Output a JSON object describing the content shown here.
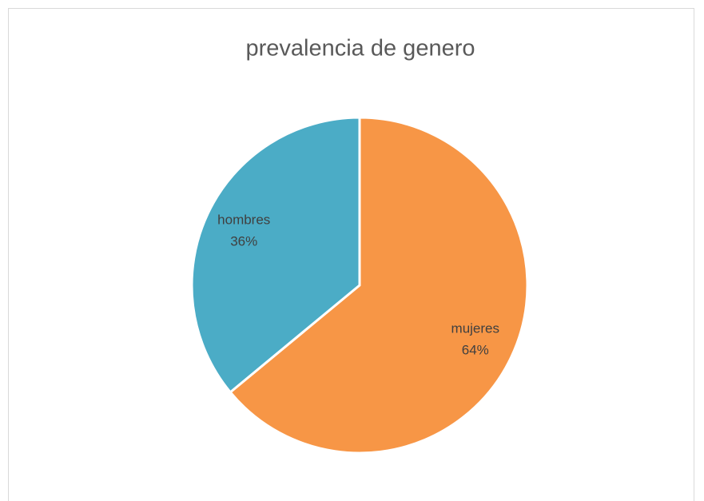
{
  "chart_data": {
    "type": "pie",
    "title": "prevalencia de genero",
    "categories": [
      "mujeres",
      "hombres"
    ],
    "values": [
      64,
      36
    ],
    "value_labels": [
      "64%",
      "36%"
    ],
    "colors": [
      "#f79646",
      "#4bacc6"
    ]
  }
}
